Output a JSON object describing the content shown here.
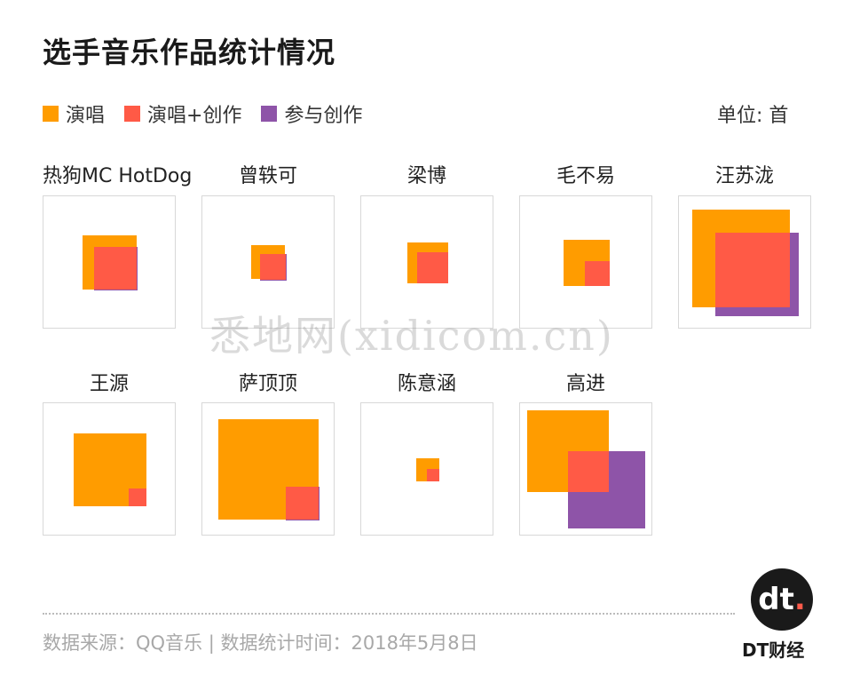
{
  "title": "选手音乐作品统计情况",
  "unit": "单位: 首",
  "legend": [
    {
      "label": "演唱",
      "color": "#FF9C00"
    },
    {
      "label": "演唱+创作",
      "color": "#FF5A46"
    },
    {
      "label": "参与创作",
      "color": "#8E54A8"
    }
  ],
  "colors": {
    "sing": "#FF9C00",
    "both": "#FF5A46",
    "write": "#8E54A8"
  },
  "chart_data": {
    "type": "nested-square",
    "unit": "首",
    "series_names": [
      "演唱",
      "演唱+创作",
      "参与创作"
    ],
    "panels": [
      {
        "name": "热狗MC HotDog",
        "sing": 37,
        "both": 23,
        "write": 24
      },
      {
        "name": "曾轶可",
        "sing": 15,
        "both": 8,
        "write": 9
      },
      {
        "name": "梁博",
        "sing": 21,
        "both": 12,
        "write": 12
      },
      {
        "name": "毛不易",
        "sing": 28,
        "both": 8,
        "write": 8
      },
      {
        "name": "汪苏泷",
        "sing": 121,
        "both": 71,
        "write": 89
      },
      {
        "name": "王源",
        "sing": 67,
        "both": 4,
        "write": 4
      },
      {
        "name": "萨顶顶",
        "sing": 129,
        "both": 14,
        "write": 15
      },
      {
        "name": "陈意涵",
        "sing": 7,
        "both": 2,
        "write": 2
      },
      {
        "name": "高进",
        "sing": 84,
        "both": 21,
        "write": 76
      }
    ]
  },
  "footer": {
    "source": "数据来源：QQ音乐 | 数据统计时间：2018年5月8日",
    "brand_mark": "dt",
    "brand_name": "DT财经"
  },
  "watermark": "悉地网(xidicom.cn)"
}
